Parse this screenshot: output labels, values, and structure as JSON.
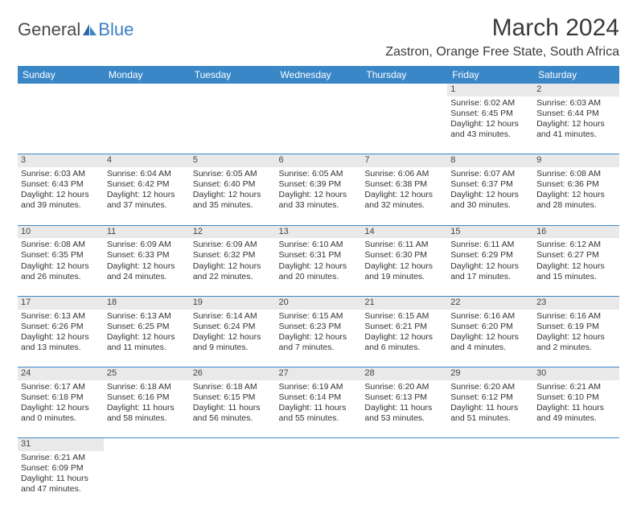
{
  "logo": {
    "part1": "General",
    "part2": "Blue"
  },
  "title": "March 2024",
  "location": "Zastron, Orange Free State, South Africa",
  "colors": {
    "header_bg": "#3a87c7",
    "header_text": "#ffffff",
    "daynum_bg": "#e9e9e9",
    "row_divider": "#3a87c7",
    "logo_accent": "#3a7fc4",
    "body_text": "#333333"
  },
  "weekdays": [
    "Sunday",
    "Monday",
    "Tuesday",
    "Wednesday",
    "Thursday",
    "Friday",
    "Saturday"
  ],
  "weeks": [
    [
      null,
      null,
      null,
      null,
      null,
      {
        "n": "1",
        "sr": "Sunrise: 6:02 AM",
        "ss": "Sunset: 6:45 PM",
        "d1": "Daylight: 12 hours",
        "d2": "and 43 minutes."
      },
      {
        "n": "2",
        "sr": "Sunrise: 6:03 AM",
        "ss": "Sunset: 6:44 PM",
        "d1": "Daylight: 12 hours",
        "d2": "and 41 minutes."
      }
    ],
    [
      {
        "n": "3",
        "sr": "Sunrise: 6:03 AM",
        "ss": "Sunset: 6:43 PM",
        "d1": "Daylight: 12 hours",
        "d2": "and 39 minutes."
      },
      {
        "n": "4",
        "sr": "Sunrise: 6:04 AM",
        "ss": "Sunset: 6:42 PM",
        "d1": "Daylight: 12 hours",
        "d2": "and 37 minutes."
      },
      {
        "n": "5",
        "sr": "Sunrise: 6:05 AM",
        "ss": "Sunset: 6:40 PM",
        "d1": "Daylight: 12 hours",
        "d2": "and 35 minutes."
      },
      {
        "n": "6",
        "sr": "Sunrise: 6:05 AM",
        "ss": "Sunset: 6:39 PM",
        "d1": "Daylight: 12 hours",
        "d2": "and 33 minutes."
      },
      {
        "n": "7",
        "sr": "Sunrise: 6:06 AM",
        "ss": "Sunset: 6:38 PM",
        "d1": "Daylight: 12 hours",
        "d2": "and 32 minutes."
      },
      {
        "n": "8",
        "sr": "Sunrise: 6:07 AM",
        "ss": "Sunset: 6:37 PM",
        "d1": "Daylight: 12 hours",
        "d2": "and 30 minutes."
      },
      {
        "n": "9",
        "sr": "Sunrise: 6:08 AM",
        "ss": "Sunset: 6:36 PM",
        "d1": "Daylight: 12 hours",
        "d2": "and 28 minutes."
      }
    ],
    [
      {
        "n": "10",
        "sr": "Sunrise: 6:08 AM",
        "ss": "Sunset: 6:35 PM",
        "d1": "Daylight: 12 hours",
        "d2": "and 26 minutes."
      },
      {
        "n": "11",
        "sr": "Sunrise: 6:09 AM",
        "ss": "Sunset: 6:33 PM",
        "d1": "Daylight: 12 hours",
        "d2": "and 24 minutes."
      },
      {
        "n": "12",
        "sr": "Sunrise: 6:09 AM",
        "ss": "Sunset: 6:32 PM",
        "d1": "Daylight: 12 hours",
        "d2": "and 22 minutes."
      },
      {
        "n": "13",
        "sr": "Sunrise: 6:10 AM",
        "ss": "Sunset: 6:31 PM",
        "d1": "Daylight: 12 hours",
        "d2": "and 20 minutes."
      },
      {
        "n": "14",
        "sr": "Sunrise: 6:11 AM",
        "ss": "Sunset: 6:30 PM",
        "d1": "Daylight: 12 hours",
        "d2": "and 19 minutes."
      },
      {
        "n": "15",
        "sr": "Sunrise: 6:11 AM",
        "ss": "Sunset: 6:29 PM",
        "d1": "Daylight: 12 hours",
        "d2": "and 17 minutes."
      },
      {
        "n": "16",
        "sr": "Sunrise: 6:12 AM",
        "ss": "Sunset: 6:27 PM",
        "d1": "Daylight: 12 hours",
        "d2": "and 15 minutes."
      }
    ],
    [
      {
        "n": "17",
        "sr": "Sunrise: 6:13 AM",
        "ss": "Sunset: 6:26 PM",
        "d1": "Daylight: 12 hours",
        "d2": "and 13 minutes."
      },
      {
        "n": "18",
        "sr": "Sunrise: 6:13 AM",
        "ss": "Sunset: 6:25 PM",
        "d1": "Daylight: 12 hours",
        "d2": "and 11 minutes."
      },
      {
        "n": "19",
        "sr": "Sunrise: 6:14 AM",
        "ss": "Sunset: 6:24 PM",
        "d1": "Daylight: 12 hours",
        "d2": "and 9 minutes."
      },
      {
        "n": "20",
        "sr": "Sunrise: 6:15 AM",
        "ss": "Sunset: 6:23 PM",
        "d1": "Daylight: 12 hours",
        "d2": "and 7 minutes."
      },
      {
        "n": "21",
        "sr": "Sunrise: 6:15 AM",
        "ss": "Sunset: 6:21 PM",
        "d1": "Daylight: 12 hours",
        "d2": "and 6 minutes."
      },
      {
        "n": "22",
        "sr": "Sunrise: 6:16 AM",
        "ss": "Sunset: 6:20 PM",
        "d1": "Daylight: 12 hours",
        "d2": "and 4 minutes."
      },
      {
        "n": "23",
        "sr": "Sunrise: 6:16 AM",
        "ss": "Sunset: 6:19 PM",
        "d1": "Daylight: 12 hours",
        "d2": "and 2 minutes."
      }
    ],
    [
      {
        "n": "24",
        "sr": "Sunrise: 6:17 AM",
        "ss": "Sunset: 6:18 PM",
        "d1": "Daylight: 12 hours",
        "d2": "and 0 minutes."
      },
      {
        "n": "25",
        "sr": "Sunrise: 6:18 AM",
        "ss": "Sunset: 6:16 PM",
        "d1": "Daylight: 11 hours",
        "d2": "and 58 minutes."
      },
      {
        "n": "26",
        "sr": "Sunrise: 6:18 AM",
        "ss": "Sunset: 6:15 PM",
        "d1": "Daylight: 11 hours",
        "d2": "and 56 minutes."
      },
      {
        "n": "27",
        "sr": "Sunrise: 6:19 AM",
        "ss": "Sunset: 6:14 PM",
        "d1": "Daylight: 11 hours",
        "d2": "and 55 minutes."
      },
      {
        "n": "28",
        "sr": "Sunrise: 6:20 AM",
        "ss": "Sunset: 6:13 PM",
        "d1": "Daylight: 11 hours",
        "d2": "and 53 minutes."
      },
      {
        "n": "29",
        "sr": "Sunrise: 6:20 AM",
        "ss": "Sunset: 6:12 PM",
        "d1": "Daylight: 11 hours",
        "d2": "and 51 minutes."
      },
      {
        "n": "30",
        "sr": "Sunrise: 6:21 AM",
        "ss": "Sunset: 6:10 PM",
        "d1": "Daylight: 11 hours",
        "d2": "and 49 minutes."
      }
    ],
    [
      {
        "n": "31",
        "sr": "Sunrise: 6:21 AM",
        "ss": "Sunset: 6:09 PM",
        "d1": "Daylight: 11 hours",
        "d2": "and 47 minutes."
      },
      null,
      null,
      null,
      null,
      null,
      null
    ]
  ]
}
